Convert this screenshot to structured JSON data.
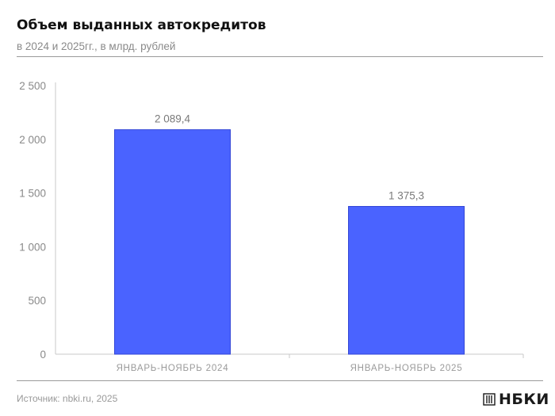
{
  "header": {
    "title": "Объем выданных автокредитов",
    "subtitle": "в 2024 и 2025гг., в млрд. рублей"
  },
  "footer": {
    "source": "Источник: nbki.ru, 2025",
    "logo_text": "НБКИ"
  },
  "colors": {
    "bar": "#4a63ff",
    "bar_stroke": "#3346d6",
    "axis": "#c8c8c8",
    "rule": "#9a9a9a"
  },
  "chart_data": {
    "type": "bar",
    "categories": [
      "ЯНВАРЬ-НОЯБРЬ 2024",
      "ЯНВАРЬ-НОЯБРЬ 2025"
    ],
    "values": [
      2089.4,
      1375.3
    ],
    "data_labels": [
      "2 089,4",
      "1 375,3"
    ],
    "yticks": [
      0,
      500,
      1000,
      1500,
      2000,
      2500
    ],
    "ytick_labels": [
      "0",
      "500",
      "1 000",
      "1 500",
      "2 000",
      "2 500"
    ],
    "ylim": [
      0,
      2500
    ],
    "grid": false,
    "legend": "none"
  }
}
